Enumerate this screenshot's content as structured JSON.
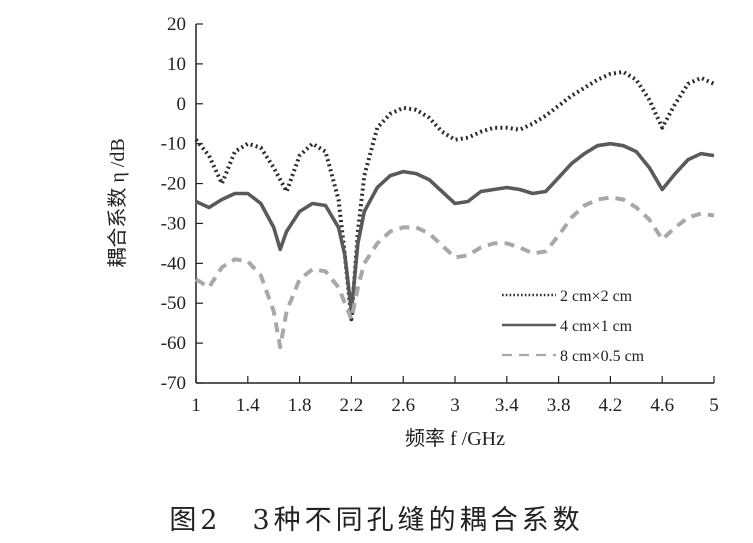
{
  "caption": "图2　3种不同孔缝的耦合系数",
  "chart_data": {
    "type": "line",
    "ylabel": "耦合系数 η /dB",
    "xlabel": "频率 f /GHz",
    "xlim": [
      1,
      5
    ],
    "ylim": [
      -70,
      20
    ],
    "x_ticks": [
      "1",
      "1.4",
      "1.8",
      "2.2",
      "2.6",
      "3",
      "3.4",
      "3.8",
      "4.2",
      "4.6",
      "5"
    ],
    "y_ticks": [
      "20",
      "10",
      "0",
      "-10",
      "-20",
      "-30",
      "-40",
      "-50",
      "-60",
      "-70"
    ],
    "grid": false,
    "legend_position": "lower-right",
    "series": [
      {
        "name": "2 cm×2 cm",
        "color": "#2b2b2b",
        "style": "dotted",
        "points": [
          [
            1.0,
            -9
          ],
          [
            1.1,
            -13
          ],
          [
            1.2,
            -20
          ],
          [
            1.3,
            -12
          ],
          [
            1.4,
            -10
          ],
          [
            1.5,
            -11
          ],
          [
            1.6,
            -16
          ],
          [
            1.7,
            -22
          ],
          [
            1.8,
            -13
          ],
          [
            1.9,
            -10
          ],
          [
            2.0,
            -12
          ],
          [
            2.1,
            -24
          ],
          [
            2.15,
            -38
          ],
          [
            2.2,
            -54
          ],
          [
            2.25,
            -32
          ],
          [
            2.3,
            -18
          ],
          [
            2.4,
            -6
          ],
          [
            2.5,
            -2.5
          ],
          [
            2.6,
            -1
          ],
          [
            2.7,
            -1.5
          ],
          [
            2.8,
            -3.5
          ],
          [
            2.9,
            -7
          ],
          [
            3.0,
            -9
          ],
          [
            3.1,
            -8.5
          ],
          [
            3.2,
            -7
          ],
          [
            3.3,
            -6
          ],
          [
            3.4,
            -6
          ],
          [
            3.5,
            -6.5
          ],
          [
            3.6,
            -5
          ],
          [
            3.7,
            -3
          ],
          [
            3.8,
            -0.5
          ],
          [
            3.9,
            2
          ],
          [
            4.0,
            4
          ],
          [
            4.1,
            6
          ],
          [
            4.2,
            7.5
          ],
          [
            4.3,
            8
          ],
          [
            4.4,
            6
          ],
          [
            4.5,
            1
          ],
          [
            4.6,
            -6
          ],
          [
            4.7,
            0
          ],
          [
            4.8,
            5
          ],
          [
            4.9,
            6.5
          ],
          [
            5.0,
            5
          ]
        ]
      },
      {
        "name": "4 cm×1 cm",
        "color": "#5a5a5a",
        "style": "solid",
        "points": [
          [
            1.0,
            -24.5
          ],
          [
            1.1,
            -26
          ],
          [
            1.2,
            -24
          ],
          [
            1.3,
            -22.5
          ],
          [
            1.4,
            -22.5
          ],
          [
            1.5,
            -25
          ],
          [
            1.6,
            -31
          ],
          [
            1.65,
            -36.5
          ],
          [
            1.7,
            -32
          ],
          [
            1.8,
            -27
          ],
          [
            1.9,
            -25
          ],
          [
            2.0,
            -25.5
          ],
          [
            2.1,
            -31
          ],
          [
            2.15,
            -38
          ],
          [
            2.2,
            -52
          ],
          [
            2.25,
            -35
          ],
          [
            2.3,
            -27
          ],
          [
            2.4,
            -21
          ],
          [
            2.5,
            -18
          ],
          [
            2.6,
            -17
          ],
          [
            2.7,
            -17.5
          ],
          [
            2.8,
            -19
          ],
          [
            2.9,
            -22
          ],
          [
            3.0,
            -25
          ],
          [
            3.1,
            -24.5
          ],
          [
            3.2,
            -22
          ],
          [
            3.3,
            -21.5
          ],
          [
            3.4,
            -21
          ],
          [
            3.5,
            -21.5
          ],
          [
            3.6,
            -22.5
          ],
          [
            3.7,
            -22
          ],
          [
            3.8,
            -18.5
          ],
          [
            3.9,
            -15
          ],
          [
            4.0,
            -12.5
          ],
          [
            4.1,
            -10.5
          ],
          [
            4.2,
            -10
          ],
          [
            4.3,
            -10.5
          ],
          [
            4.4,
            -12
          ],
          [
            4.5,
            -16
          ],
          [
            4.6,
            -21.5
          ],
          [
            4.7,
            -17.5
          ],
          [
            4.8,
            -14
          ],
          [
            4.9,
            -12.5
          ],
          [
            5.0,
            -13
          ]
        ]
      },
      {
        "name": "8 cm×0.5 cm",
        "color": "#a8a8a8",
        "style": "dashed",
        "points": [
          [
            1.0,
            -44
          ],
          [
            1.1,
            -46
          ],
          [
            1.2,
            -41
          ],
          [
            1.3,
            -39
          ],
          [
            1.4,
            -39.5
          ],
          [
            1.5,
            -43
          ],
          [
            1.6,
            -52
          ],
          [
            1.65,
            -61
          ],
          [
            1.7,
            -52
          ],
          [
            1.8,
            -44
          ],
          [
            1.9,
            -41.5
          ],
          [
            2.0,
            -42
          ],
          [
            2.1,
            -46
          ],
          [
            2.2,
            -54
          ],
          [
            2.25,
            -46
          ],
          [
            2.3,
            -40
          ],
          [
            2.4,
            -35
          ],
          [
            2.5,
            -32
          ],
          [
            2.6,
            -31
          ],
          [
            2.7,
            -31
          ],
          [
            2.8,
            -32.5
          ],
          [
            2.9,
            -35.5
          ],
          [
            3.0,
            -38.5
          ],
          [
            3.1,
            -38
          ],
          [
            3.2,
            -36
          ],
          [
            3.3,
            -35
          ],
          [
            3.4,
            -35
          ],
          [
            3.5,
            -36
          ],
          [
            3.6,
            -37.5
          ],
          [
            3.7,
            -37
          ],
          [
            3.8,
            -33
          ],
          [
            3.9,
            -28.5
          ],
          [
            4.0,
            -25.5
          ],
          [
            4.1,
            -24
          ],
          [
            4.2,
            -23.5
          ],
          [
            4.3,
            -24
          ],
          [
            4.4,
            -26
          ],
          [
            4.5,
            -29
          ],
          [
            4.6,
            -34
          ],
          [
            4.7,
            -31
          ],
          [
            4.8,
            -28.5
          ],
          [
            4.9,
            -27.5
          ],
          [
            5.0,
            -28
          ]
        ]
      }
    ]
  }
}
